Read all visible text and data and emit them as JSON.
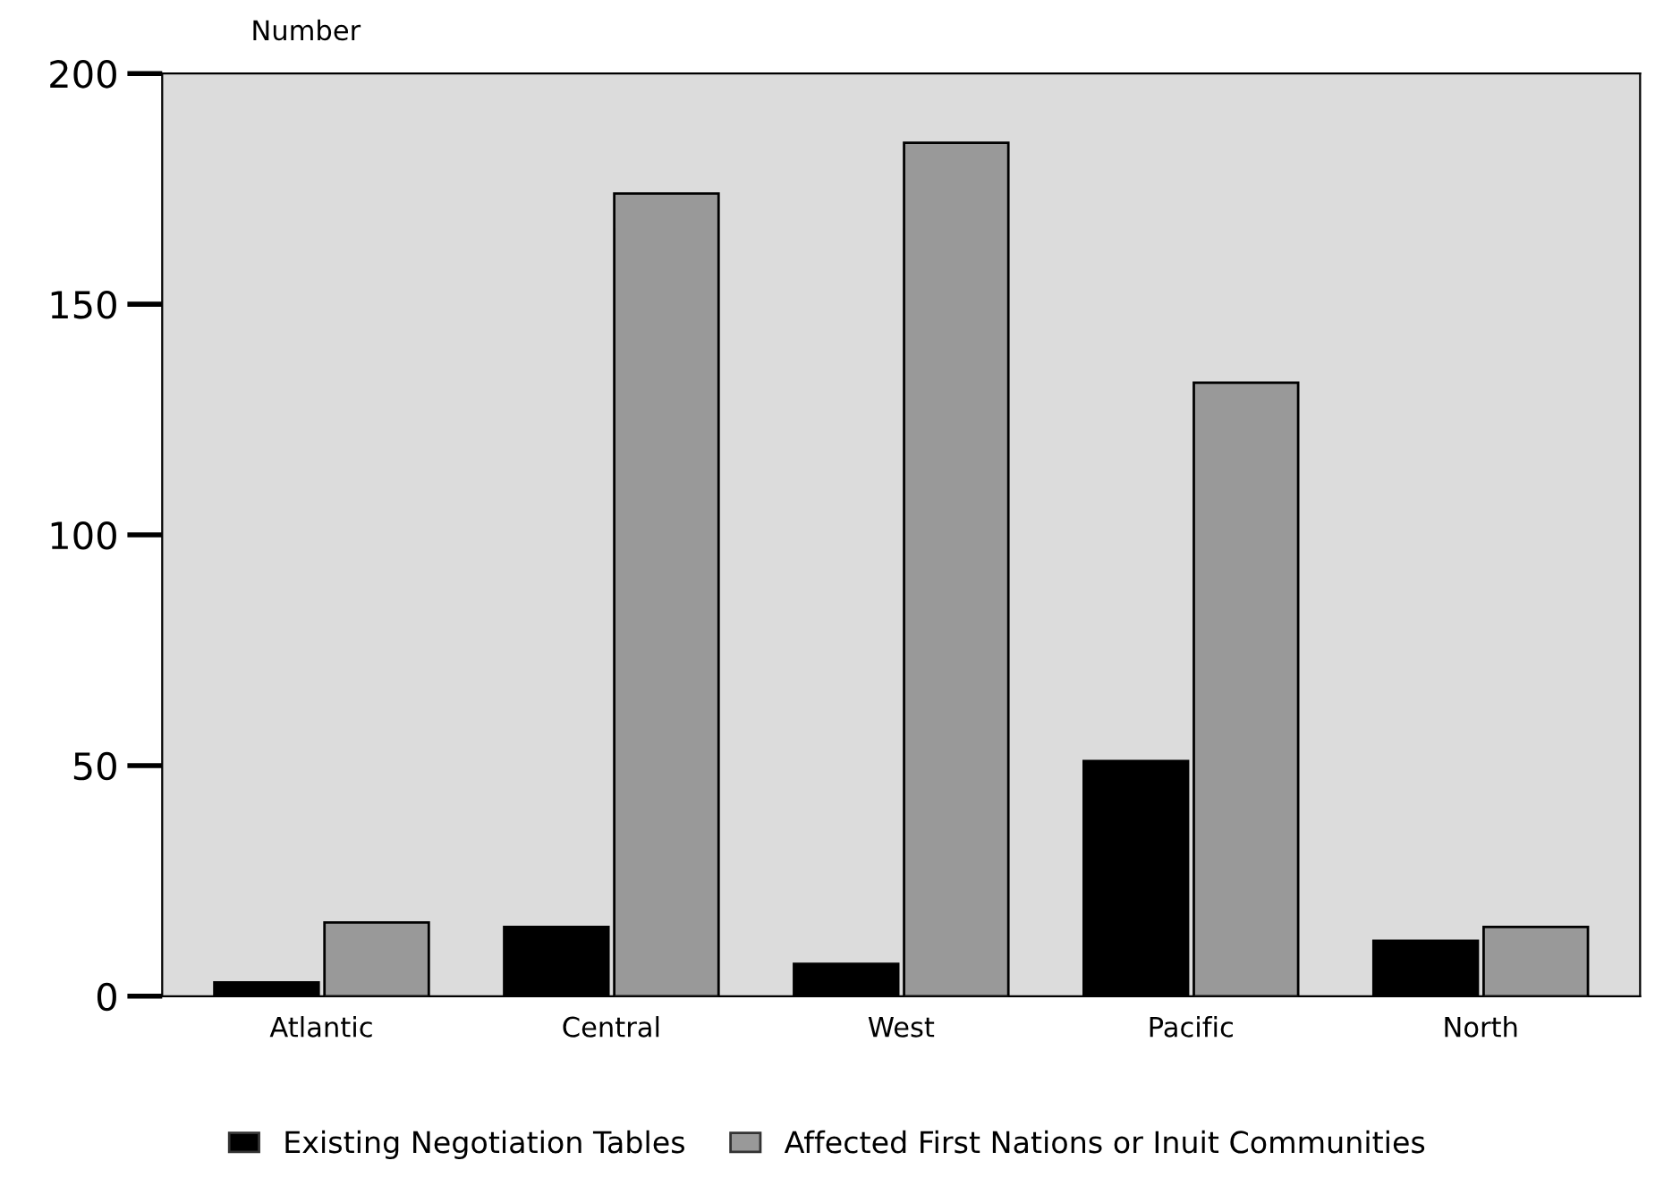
{
  "chart_data": {
    "type": "bar",
    "ylabel": "Number",
    "categories": [
      "Atlantic",
      "Central",
      "West",
      "Pacific",
      "North"
    ],
    "series": [
      {
        "name": "Existing Negotiation Tables",
        "color": "#000000",
        "values": [
          3,
          15,
          7,
          51,
          12
        ]
      },
      {
        "name": "Affected First Nations or Inuit Communities",
        "color": "#999999",
        "values": [
          16,
          174,
          185,
          133,
          15
        ]
      }
    ],
    "ylim": [
      0,
      200
    ],
    "yticks": [
      0,
      50,
      100,
      150,
      200
    ],
    "grid": false,
    "legend": "bottom"
  }
}
